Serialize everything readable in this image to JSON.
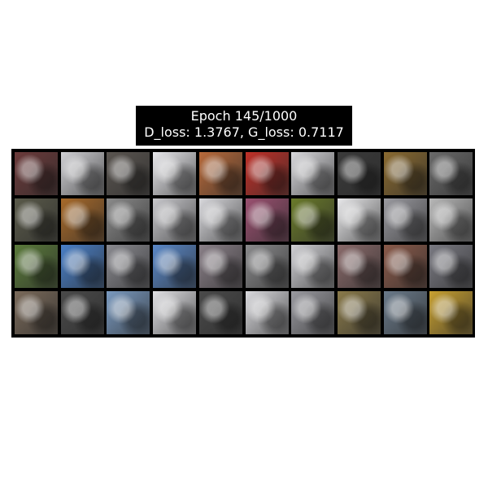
{
  "figure": {
    "title_line1": "Epoch 145/1000",
    "title_line2": "D_loss: 1.3767, G_loss: 0.7117"
  },
  "grid": {
    "rows": 4,
    "cols": 10,
    "tiles": [
      [
        "#6b3a3a",
        "#d0d0d4",
        "#5a5550",
        "#e8e8ec",
        "#b86a3a",
        "#c03028",
        "#d8d8dc",
        "#3a3a3a",
        "#8a6a30",
        "#6a6a6a"
      ],
      [
        "#5a5a4a",
        "#a86a2a",
        "#8a8a8a",
        "#c8c8cc",
        "#d8d8dc",
        "#9a5070",
        "#6a7a2a",
        "#e8e8ea",
        "#9a9aa0",
        "#b8b8b8"
      ],
      [
        "#5a7a3a",
        "#4a80c8",
        "#8a8a90",
        "#5a88c8",
        "#8a8088",
        "#8a8a8c",
        "#d0d0d4",
        "#8a6a6a",
        "#8a5a4a",
        "#7a7a82"
      ],
      [
        "#7a6a5a",
        "#4a4a4a",
        "#7a9ac0",
        "#e0e0e4",
        "#4a4a4a",
        "#dadade",
        "#9a9aa0",
        "#8a7a4a",
        "#6a7a8a",
        "#c8a030"
      ]
    ]
  }
}
